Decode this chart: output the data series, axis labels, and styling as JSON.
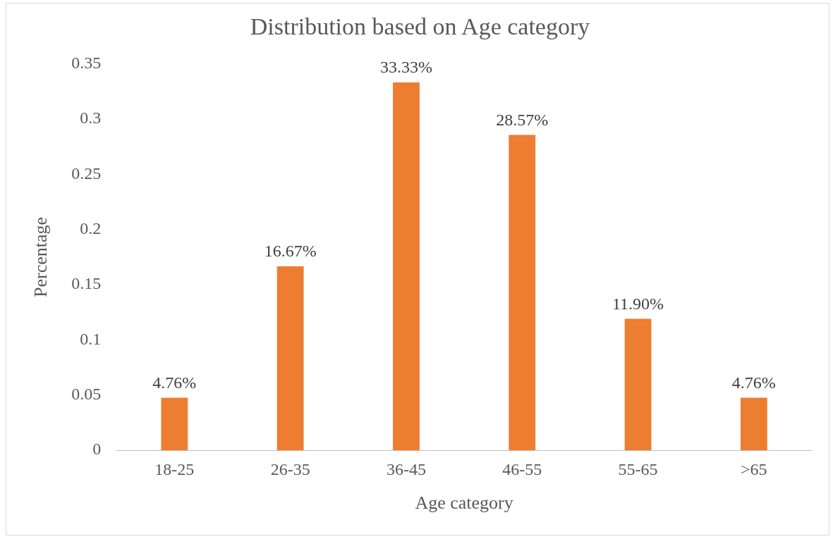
{
  "chart_data": {
    "type": "bar",
    "title": "Distribution based on Age category",
    "xlabel": "Age category",
    "ylabel": "Percentage",
    "categories": [
      "18-25",
      "26-35",
      "36-45",
      "46-55",
      "55-65",
      ">65"
    ],
    "values": [
      0.0476,
      0.1667,
      0.3333,
      0.2857,
      0.119,
      0.0476
    ],
    "value_labels": [
      "4.76%",
      "16.67%",
      "33.33%",
      "28.57%",
      "11.90%",
      "4.76%"
    ],
    "color": "#ed7d31",
    "ylim": [
      0,
      0.35
    ],
    "yticks": [
      0,
      0.05,
      0.1,
      0.15,
      0.2,
      0.25,
      0.3,
      0.35
    ],
    "grid": false,
    "legend": false
  }
}
